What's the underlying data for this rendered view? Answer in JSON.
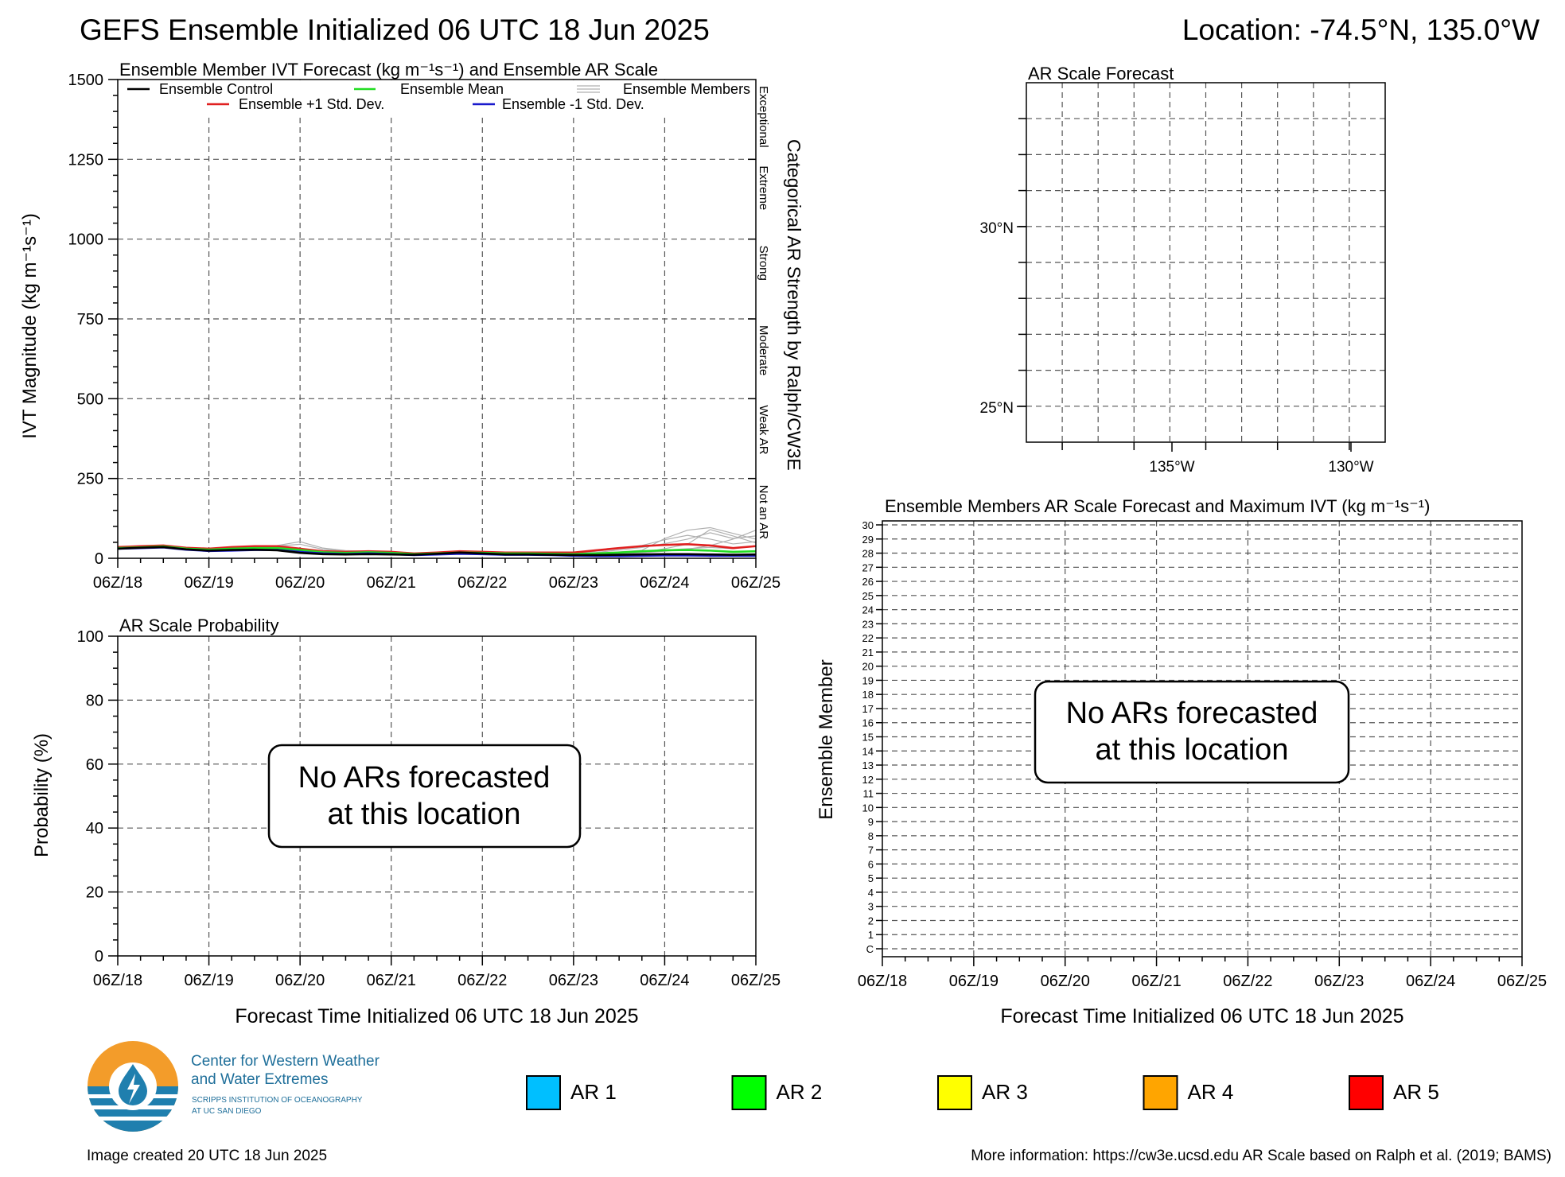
{
  "header": {
    "title": "GEFS Ensemble Initialized 06 UTC 18 Jun 2025",
    "location": "Location: -74.5°N, 135.0°W"
  },
  "time_ticks": [
    "06Z/18",
    "06Z/19",
    "06Z/20",
    "06Z/21",
    "06Z/22",
    "06Z/23",
    "06Z/24",
    "06Z/25"
  ],
  "xlabel": "Forecast Time Initialized 06 UTC 18 Jun 2025",
  "colors": {
    "ensemble_control": "#000000",
    "ensemble_mean": "#22dd22",
    "ensemble_members": "#b0b0b0",
    "plus_std": "#e02020",
    "minus_std": "#1a1acc",
    "ar1": "#00bfff",
    "ar2": "#00ff00",
    "ar3": "#ffff00",
    "ar4": "#ffa500",
    "ar5": "#ff0000"
  },
  "chart_data": [
    {
      "type": "line",
      "title": "Ensemble Member IVT Forecast (kg m⁻¹s⁻¹) and Ensemble AR Scale",
      "ylabel": "IVT Magnitude (kg m⁻¹s⁻¹)",
      "right_label": "Categorical AR Strength by Ralph/CW3E",
      "categories_right": [
        "Exceptional",
        "Extreme",
        "Strong",
        "Moderate",
        "Weak AR",
        "Not an AR"
      ],
      "ylim": [
        0,
        1500
      ],
      "yticks": [
        "0",
        "250",
        "500",
        "750",
        "1000",
        "1250",
        "1500"
      ],
      "legend": {
        "control": "Ensemble Control",
        "mean": "Ensemble Mean",
        "members": "Ensemble Members",
        "plus_std": "Ensemble +1 Std. Dev.",
        "minus_std": "Ensemble -1 Std. Dev."
      },
      "x_days": [
        0,
        0.25,
        0.5,
        0.75,
        1,
        1.25,
        1.5,
        1.75,
        2,
        2.25,
        2.5,
        2.75,
        3,
        3.25,
        3.5,
        3.75,
        4,
        4.25,
        4.5,
        4.75,
        5,
        5.25,
        5.5,
        5.75,
        6,
        6.25,
        6.5,
        6.75,
        7
      ],
      "series": [
        {
          "key": "plus_std",
          "values": [
            35,
            38,
            40,
            33,
            30,
            35,
            38,
            38,
            30,
            22,
            20,
            22,
            20,
            15,
            18,
            22,
            20,
            18,
            18,
            18,
            18,
            25,
            32,
            38,
            42,
            44,
            40,
            32,
            38
          ]
        },
        {
          "key": "mean",
          "values": [
            32,
            34,
            37,
            30,
            27,
            30,
            32,
            32,
            26,
            19,
            17,
            19,
            17,
            13,
            15,
            18,
            17,
            15,
            15,
            14,
            13,
            15,
            18,
            22,
            25,
            26,
            24,
            20,
            22
          ]
        },
        {
          "key": "minus_std",
          "values": [
            30,
            32,
            34,
            27,
            23,
            24,
            26,
            26,
            20,
            15,
            13,
            15,
            13,
            10,
            12,
            14,
            13,
            11,
            11,
            10,
            8,
            7,
            7,
            8,
            9,
            9,
            8,
            8,
            8
          ]
        },
        {
          "key": "control",
          "values": [
            30,
            33,
            35,
            28,
            24,
            26,
            27,
            25,
            17,
            13,
            12,
            13,
            12,
            11,
            14,
            18,
            15,
            12,
            12,
            11,
            10,
            10,
            11,
            12,
            13,
            13,
            12,
            11,
            12
          ]
        }
      ],
      "members": [
        [
          34,
          36,
          38,
          32,
          30,
          34,
          36,
          36,
          28,
          21,
          18,
          20,
          18,
          14,
          16,
          20,
          19,
          17,
          17,
          17,
          15,
          22,
          30,
          40,
          58,
          72,
          60,
          45,
          52
        ],
        [
          31,
          33,
          36,
          29,
          27,
          31,
          33,
          34,
          30,
          20,
          19,
          21,
          19,
          15,
          17,
          21,
          18,
          16,
          16,
          16,
          14,
          18,
          26,
          34,
          46,
          60,
          80,
          62,
          70
        ],
        [
          33,
          35,
          39,
          31,
          28,
          32,
          34,
          38,
          44,
          28,
          22,
          20,
          18,
          14,
          16,
          19,
          18,
          16,
          15,
          15,
          14,
          16,
          20,
          25,
          62,
          88,
          96,
          78,
          60
        ],
        [
          30,
          32,
          35,
          29,
          26,
          28,
          30,
          30,
          26,
          18,
          16,
          18,
          16,
          12,
          14,
          17,
          16,
          14,
          14,
          13,
          12,
          14,
          16,
          18,
          30,
          44,
          90,
          70,
          48
        ],
        [
          32,
          34,
          36,
          30,
          28,
          30,
          33,
          32,
          27,
          19,
          17,
          19,
          17,
          13,
          15,
          18,
          17,
          15,
          15,
          14,
          13,
          14,
          15,
          17,
          22,
          28,
          40,
          60,
          88
        ],
        [
          33,
          35,
          38,
          31,
          29,
          33,
          37,
          40,
          52,
          32,
          24,
          22,
          19,
          14,
          16,
          19,
          18,
          16,
          16,
          15,
          14,
          15,
          18,
          21,
          26,
          30,
          34,
          30,
          40
        ]
      ]
    },
    {
      "type": "line",
      "title": "AR Scale Probability",
      "ylabel": "Probability (%)",
      "ylim": [
        0,
        100
      ],
      "yticks": [
        "0",
        "20",
        "40",
        "60",
        "80",
        "100"
      ],
      "message_line1": "No ARs forecasted",
      "message_line2": "at this location",
      "series": []
    },
    {
      "type": "scatter",
      "title": "AR Scale Forecast",
      "lat_ticks": [
        "30°N",
        "25°N"
      ],
      "lon_ticks": [
        "135°W",
        "130°W"
      ],
      "points": []
    },
    {
      "type": "heatmap",
      "title": "Ensemble Members AR Scale Forecast and Maximum IVT (kg m⁻¹s⁻¹)",
      "ylabel": "Ensemble Member",
      "members": [
        "C",
        "1",
        "2",
        "3",
        "4",
        "5",
        "6",
        "7",
        "8",
        "9",
        "10",
        "11",
        "12",
        "13",
        "14",
        "15",
        "16",
        "17",
        "18",
        "19",
        "20",
        "21",
        "22",
        "23",
        "24",
        "25",
        "26",
        "27",
        "28",
        "29",
        "30"
      ],
      "message_line1": "No ARs forecasted",
      "message_line2": "at this location",
      "cells": []
    }
  ],
  "footer": {
    "org_line1": "Center for Western Weather",
    "org_line2": "and Water Extremes",
    "org_sub1": "SCRIPPS INSTITUTION OF OCEANOGRAPHY",
    "org_sub2": "AT UC SAN DIEGO",
    "created": "Image created 20 UTC 18 Jun 2025",
    "more_info": "More information: https://cw3e.ucsd.edu AR Scale based on Ralph et al. (2019; BAMS)"
  },
  "ar_legend": [
    {
      "label": "AR 1",
      "color": "#00bfff"
    },
    {
      "label": "AR 2",
      "color": "#00ff00"
    },
    {
      "label": "AR 3",
      "color": "#ffff00"
    },
    {
      "label": "AR 4",
      "color": "#ffa500"
    },
    {
      "label": "AR 5",
      "color": "#ff0000"
    }
  ]
}
